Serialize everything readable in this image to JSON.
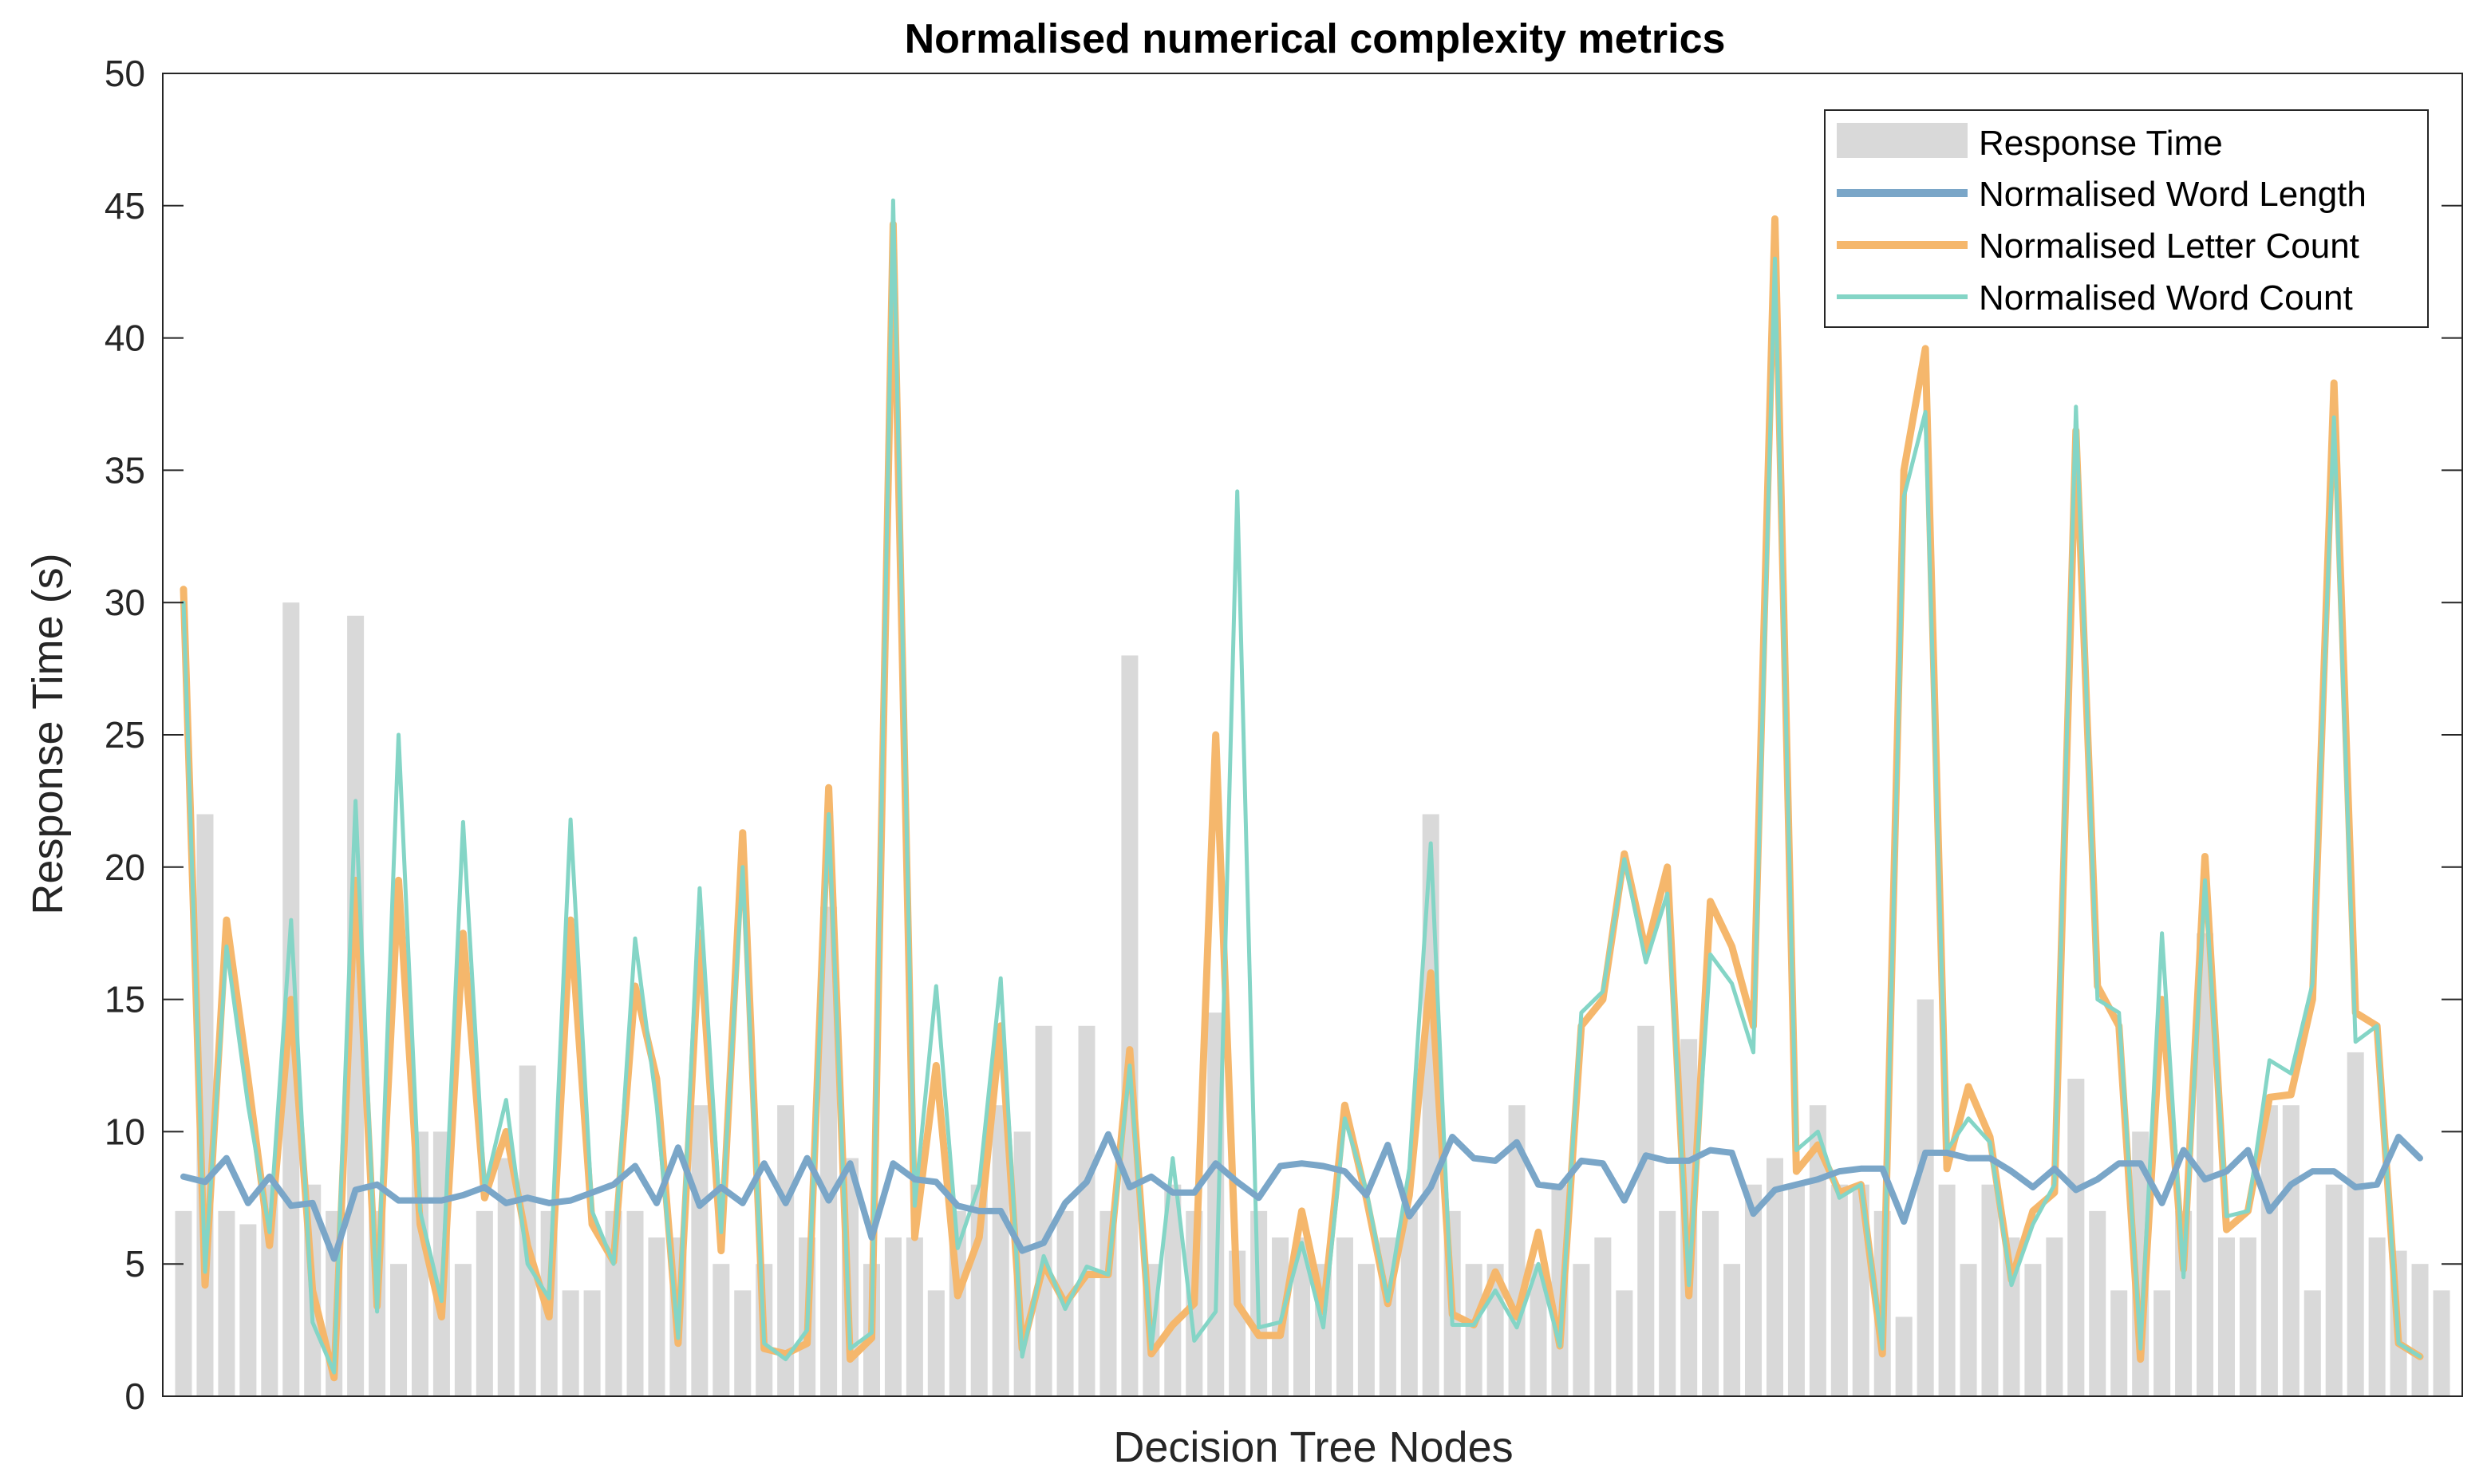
{
  "chart_data": {
    "type": "bar",
    "title": "Normalised numerical complexity metrics",
    "xlabel": "Decision Tree Nodes",
    "ylabel": "Response Time (s)",
    "ylim": [
      0,
      50
    ],
    "yticks": [
      0,
      5,
      10,
      15,
      20,
      25,
      30,
      35,
      40,
      45,
      50
    ],
    "grid": false,
    "legend": "top-right",
    "colors": {
      "response_time": "#d9d9d9",
      "word_length": "#7aa6c8",
      "letter_count": "#f5b76c",
      "word_count": "#84d5c6",
      "axes": "#262626"
    },
    "series": [
      {
        "name": "Response Time",
        "type": "bar",
        "values": [
          7,
          22,
          7,
          6.5,
          8,
          30,
          8,
          7,
          29.5,
          7,
          5,
          10,
          10,
          5,
          7,
          9,
          12.5,
          7,
          4,
          4,
          7,
          7,
          6,
          6,
          11,
          5,
          4,
          5,
          11,
          6,
          18.5,
          9,
          5,
          6,
          6,
          4,
          7,
          8,
          11,
          10,
          14,
          7,
          14,
          7,
          28,
          5,
          8,
          7,
          14.5,
          5.5,
          7,
          6,
          6,
          5,
          6,
          5,
          6,
          7,
          22,
          7,
          5,
          5,
          11,
          5,
          8,
          5,
          6,
          4,
          14,
          7,
          13.5,
          7,
          5,
          8,
          9,
          8,
          11,
          8,
          8,
          7,
          3,
          15,
          8,
          5,
          8,
          6,
          5,
          6,
          12,
          7,
          4,
          10,
          4,
          7,
          17.5,
          6,
          6,
          11,
          11,
          4,
          8,
          13,
          6,
          5.5,
          5,
          4
        ]
      },
      {
        "name": "Normalised Word Length",
        "type": "line",
        "values": [
          8.3,
          8.1,
          9,
          7.3,
          8.3,
          7.2,
          7.3,
          5.2,
          7.8,
          8,
          7.4,
          7.4,
          7.4,
          7.6,
          7.9,
          7.3,
          7.5,
          7.3,
          7.4,
          7.7,
          8,
          8.7,
          7.3,
          9.4,
          7.2,
          7.9,
          7.3,
          8.8,
          7.3,
          9,
          7.4,
          8.8,
          6,
          8.8,
          8.2,
          8.1,
          7.2,
          7,
          7,
          5.5,
          5.8,
          7.3,
          8.1,
          9.9,
          7.9,
          8.3,
          7.7,
          7.7,
          8.8,
          8.1,
          7.5,
          8.7,
          8.8,
          8.7,
          8.5,
          7.6,
          9.5,
          6.8,
          7.9,
          9.8,
          9,
          8.9,
          9.6,
          8,
          7.9,
          8.9,
          8.8,
          7.4,
          9.1,
          8.9,
          8.9,
          9.3,
          9.2,
          6.9,
          7.8,
          8,
          8.2,
          8.5,
          8.6,
          8.6,
          6.6,
          9.2,
          9.2,
          9,
          9,
          8.5,
          7.9,
          8.6,
          7.8,
          8.2,
          8.8,
          8.8,
          7.3,
          9.3,
          8.2,
          8.5,
          9.3,
          7,
          8,
          8.5,
          8.5,
          7.9,
          8,
          9.8,
          9
        ]
      },
      {
        "name": "Normalised Letter Count",
        "type": "line",
        "values": [
          30.5,
          4.2,
          18,
          12,
          5.7,
          15,
          4,
          0.7,
          19.5,
          3.4,
          19.5,
          6.5,
          3,
          17.5,
          7.5,
          10,
          5.7,
          3,
          18,
          6.5,
          5.1,
          15.5,
          12,
          2,
          17.5,
          5.5,
          21.3,
          1.8,
          1.6,
          2,
          23,
          1.4,
          2.2,
          44.3,
          6,
          12.5,
          3.8,
          6,
          14,
          1.8,
          5,
          3.5,
          4.6,
          4.6,
          13.1,
          1.6,
          2.7,
          3.5,
          25,
          3.5,
          2.3,
          2.3,
          7,
          3.2,
          11,
          7.5,
          3.5,
          7.6,
          16,
          3.1,
          2.7,
          4.7,
          3,
          6.2,
          1.9,
          14,
          15,
          20.5,
          16.8,
          20,
          3.8,
          18.7,
          17,
          14,
          44.5,
          8.5,
          9.5,
          7.7,
          8,
          1.6,
          35,
          39.6,
          8.6,
          11.7,
          9.8,
          4.4,
          7,
          7.7,
          36.5,
          15.5,
          14,
          1.4,
          15,
          4.8,
          20.4,
          6.3,
          7,
          11.3,
          11.4,
          15,
          38.3,
          14.5,
          14,
          2,
          1.5
        ]
      },
      {
        "name": "Normalised Word Count",
        "type": "line",
        "values": [
          30,
          4.7,
          17,
          11,
          6.2,
          18,
          2.8,
          0.9,
          22.5,
          3.2,
          25,
          7,
          3.6,
          21.7,
          7.8,
          11.2,
          5,
          3.7,
          21.8,
          7,
          5,
          17.3,
          11,
          2.2,
          19.2,
          6.2,
          20,
          2,
          1.4,
          2.5,
          22,
          1.8,
          2.4,
          45.2,
          7.2,
          15.5,
          5.6,
          8,
          15.8,
          1.5,
          5.3,
          3.3,
          4.9,
          4.6,
          12.5,
          1.8,
          9,
          2.1,
          3.2,
          34.2,
          2.6,
          2.8,
          5.8,
          2.6,
          10.5,
          7.8,
          3.6,
          8.6,
          20.9,
          2.7,
          2.7,
          4,
          2.6,
          5,
          1.9,
          14.5,
          15.3,
          20.3,
          16.4,
          19,
          4.2,
          16.7,
          15.6,
          13,
          43,
          9.3,
          10,
          7.5,
          8,
          1.8,
          34,
          37.2,
          9.3,
          10.5,
          9.6,
          4.2,
          6.5,
          8,
          37.4,
          15,
          14.5,
          1.8,
          17.5,
          4.5,
          19.5,
          6.8,
          7,
          12.7,
          12.2,
          15.6,
          37,
          13.4,
          14,
          2,
          1.5
        ]
      }
    ]
  }
}
